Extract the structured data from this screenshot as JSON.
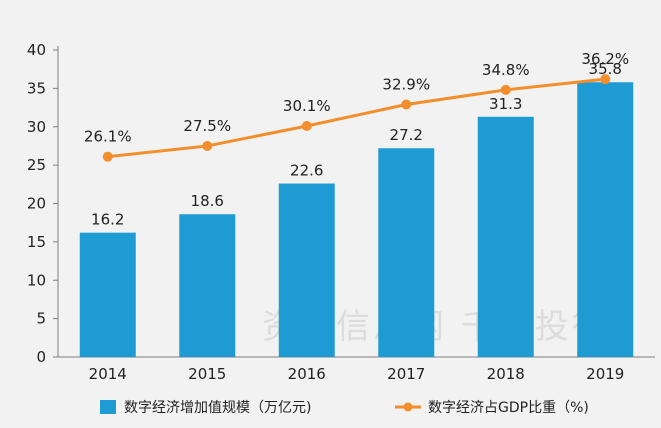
{
  "chart_data": {
    "type": "bar",
    "categories": [
      "2014",
      "2015",
      "2016",
      "2017",
      "2018",
      "2019"
    ],
    "series": [
      {
        "name": "数字经济增加值规模（万亿元)",
        "type": "bar",
        "values": [
          16.2,
          18.6,
          22.6,
          27.2,
          31.3,
          35.8
        ],
        "labels": [
          "16.2",
          "18.6",
          "22.6",
          "27.2",
          "31.3",
          "35.8"
        ],
        "color": "#1f9bd4"
      },
      {
        "name": "数字经济占GDP比重（%)",
        "type": "line",
        "values": [
          26.1,
          27.5,
          30.1,
          32.9,
          34.8,
          36.2
        ],
        "labels": [
          "26.1%",
          "27.5%",
          "30.1%",
          "32.9%",
          "34.8%",
          "36.2%"
        ],
        "color": "#f28e2b"
      }
    ],
    "ylim": [
      0,
      40
    ],
    "yticks": [
      0,
      5,
      10,
      15,
      20,
      25,
      30,
      35,
      40
    ],
    "grid": false,
    "legend_position": "bottom"
  },
  "watermark": "资产信息网 千际投行"
}
